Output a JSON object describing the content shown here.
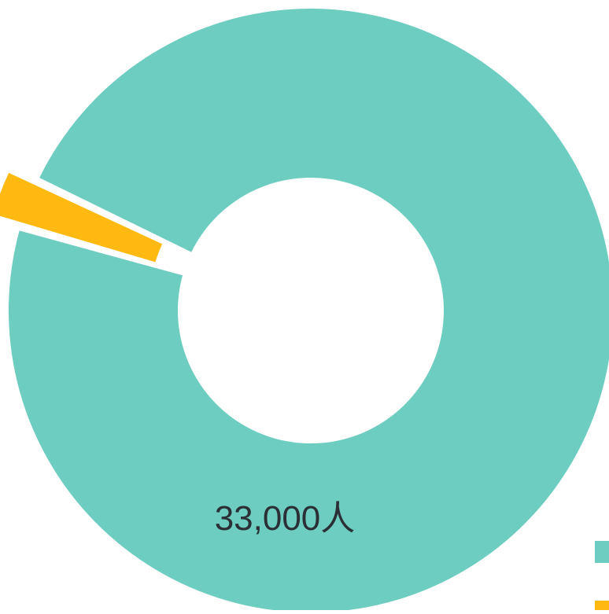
{
  "chart_data": {
    "type": "pie",
    "variant": "donut",
    "slices": [
      {
        "value": 33000,
        "label": "33,000人",
        "color": "#6ECDC1",
        "exploded": false
      },
      {
        "value": 900,
        "label": "",
        "color": "#FFB911",
        "exploded": true
      }
    ],
    "legend": {
      "placement": "bottom-right",
      "entries": [
        {
          "color": "#6ECDC1"
        },
        {
          "color": "#FFB911"
        }
      ]
    }
  }
}
